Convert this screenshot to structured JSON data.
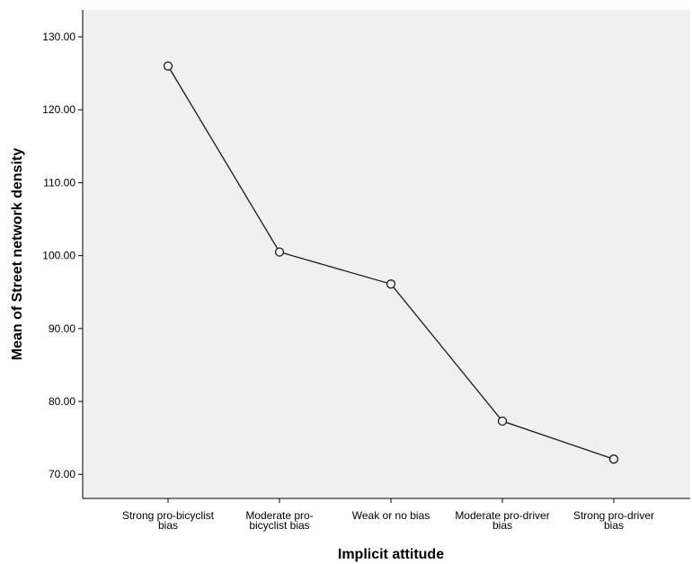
{
  "chart_data": {
    "type": "line",
    "title": "",
    "xlabel": "Implicit attitude",
    "ylabel": "Mean of Street network density",
    "categories": [
      [
        "Strong pro-bicyclist",
        "bias"
      ],
      [
        "Moderate pro-",
        "bicyclist bias"
      ],
      [
        "Weak or no bias"
      ],
      [
        "Moderate pro-driver",
        "bias"
      ],
      [
        "Strong pro-driver",
        "bias"
      ]
    ],
    "series": [
      {
        "values": [
          126.0,
          100.5,
          96.1,
          77.3,
          72.1
        ]
      }
    ],
    "ylim": [
      66.7,
      133.7
    ],
    "yticks": [
      70,
      80,
      90,
      100,
      110,
      120,
      130
    ],
    "ytick_labels": [
      "70.00",
      "80.00",
      "90.00",
      "100.00",
      "110.00",
      "120.00",
      "130.00"
    ],
    "grid": false,
    "legend": "none",
    "colors": {
      "plot_background": "#f0f0f0",
      "line": "#1a1a1a",
      "marker": "#1a1a1a",
      "axis": "#000000"
    }
  }
}
